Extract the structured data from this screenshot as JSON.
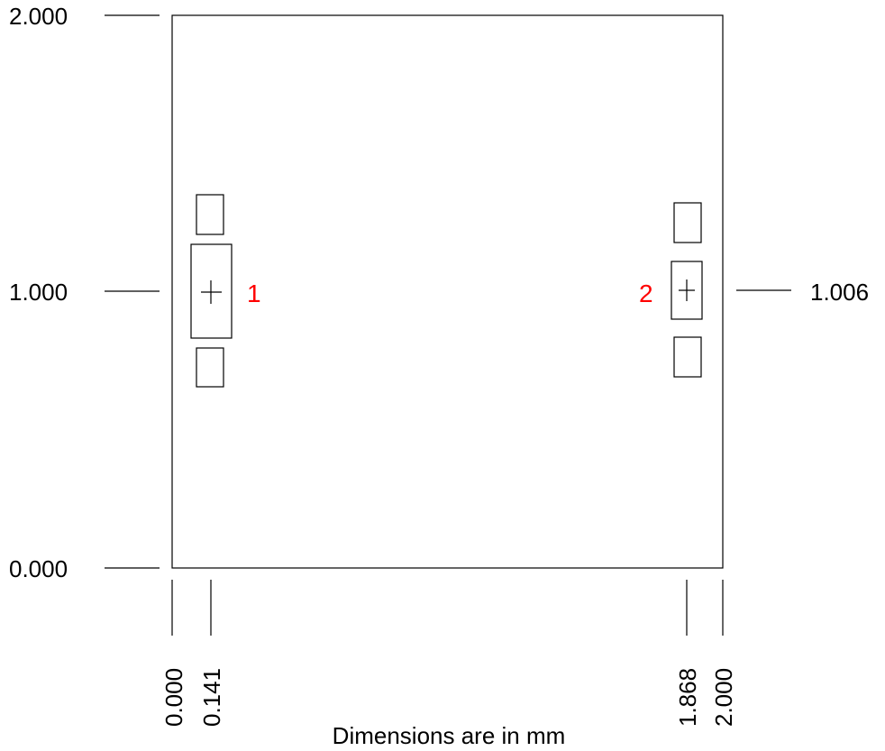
{
  "units": "mm",
  "caption": "Dimensions are in mm",
  "colors": {
    "outline": "#000000",
    "pad_label": "#ff0000"
  },
  "y_dimensions": {
    "top": "2.000",
    "middle": "1.000",
    "bottom": "0.000",
    "pad2_center": "1.006"
  },
  "x_dimensions": {
    "left": "0.000",
    "pad1_center": "0.141",
    "pad2_center": "1.868",
    "right": "2.000"
  },
  "pads": [
    {
      "label": "1",
      "x_mm": 0.141,
      "y_mm": 1.0
    },
    {
      "label": "2",
      "x_mm": 1.868,
      "y_mm": 1.006
    }
  ],
  "chart_data": {
    "type": "table",
    "title": "",
    "xlabel": "Dimensions are in mm",
    "ylabel": "",
    "x_ticks": [
      "0.000",
      "0.141",
      "1.868",
      "2.000"
    ],
    "y_ticks": [
      "0.000",
      "1.000",
      "1.006",
      "2.000"
    ],
    "points": [
      {
        "name": "1",
        "x": 0.141,
        "y": 1.0
      },
      {
        "name": "2",
        "x": 1.868,
        "y": 1.006
      }
    ]
  }
}
